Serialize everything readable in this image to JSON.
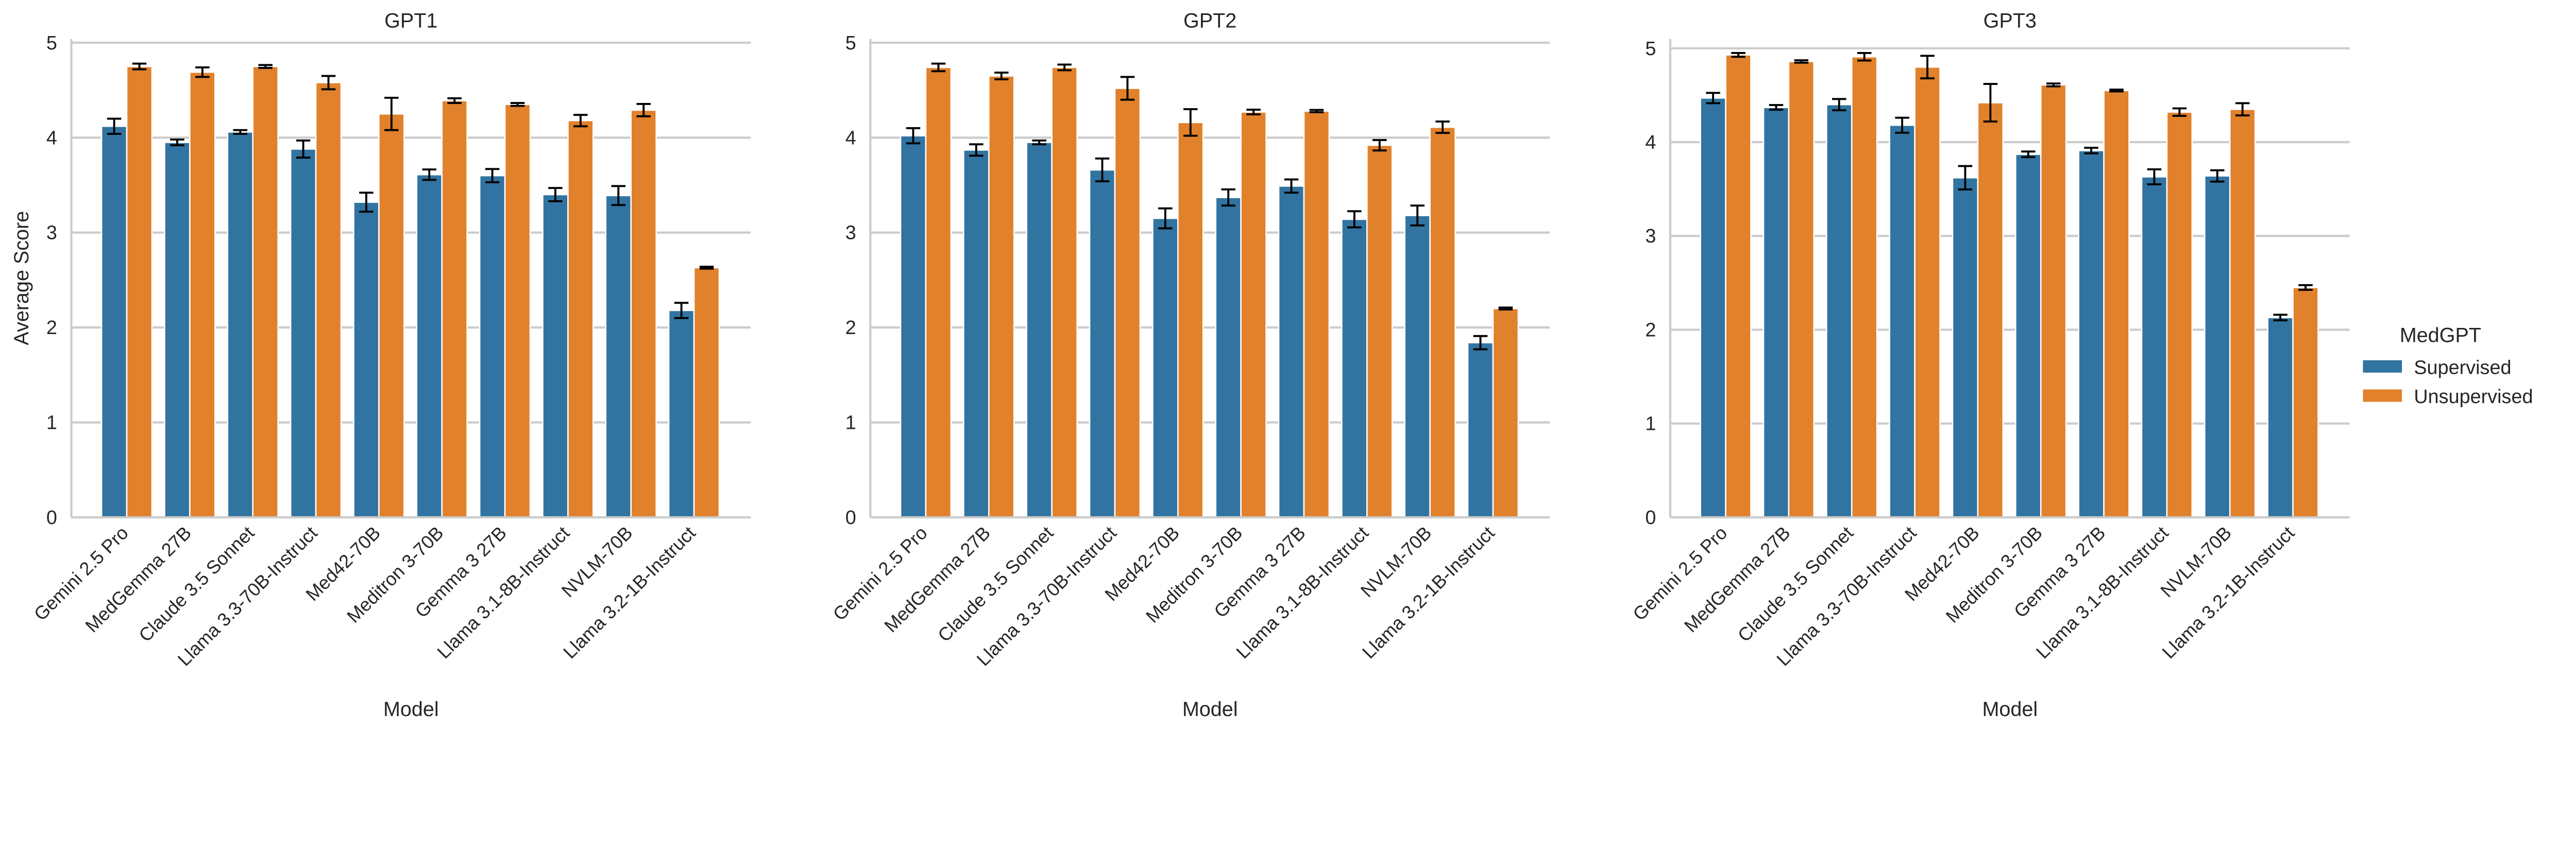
{
  "chart_data": [
    {
      "type": "bar",
      "title": "GPT1",
      "xlabel": "Model",
      "ylabel": "Average Score",
      "ylim": [
        0,
        5.04
      ],
      "yticks": [
        "0",
        "1",
        "2",
        "3",
        "4",
        "5"
      ],
      "grid": "horizontal",
      "categories": [
        "Gemini 2.5 Pro",
        "MedGemma 27B",
        "Claude 3.5 Sonnet",
        "Llama 3.3-70B-Instruct",
        "Med42-70B",
        "Meditron 3-70B",
        "Gemma 3 27B",
        "Llama 3.1-8B-Instruct",
        "NVLM-70B",
        "Llama 3.2-1B-Instruct"
      ],
      "series": [
        {
          "name": "Supervised",
          "values": [
            4.12,
            3.95,
            4.06,
            3.88,
            3.32,
            3.61,
            3.6,
            3.4,
            3.39,
            2.18
          ],
          "errors": [
            0.08,
            0.03,
            0.02,
            0.09,
            0.1,
            0.055,
            0.07,
            0.07,
            0.1,
            0.08
          ]
        },
        {
          "name": "Unsupervised",
          "values": [
            4.75,
            4.69,
            4.75,
            4.58,
            4.25,
            4.39,
            4.35,
            4.18,
            4.29,
            2.63
          ],
          "errors": [
            0.03,
            0.05,
            0.015,
            0.07,
            0.17,
            0.025,
            0.015,
            0.06,
            0.065,
            0.01
          ]
        }
      ]
    },
    {
      "type": "bar",
      "title": "GPT2",
      "xlabel": "Model",
      "ylabel": "",
      "ylim": [
        0,
        5.04
      ],
      "yticks": [
        "0",
        "1",
        "2",
        "3",
        "4",
        "5"
      ],
      "grid": "horizontal",
      "categories": [
        "Gemini 2.5 Pro",
        "MedGemma 27B",
        "Claude 3.5 Sonnet",
        "Llama 3.3-70B-Instruct",
        "Med42-70B",
        "Meditron 3-70B",
        "Gemma 3 27B",
        "Llama 3.1-8B-Instruct",
        "NVLM-70B",
        "Llama 3.2-1B-Instruct"
      ],
      "series": [
        {
          "name": "Supervised",
          "values": [
            4.02,
            3.87,
            3.95,
            3.66,
            3.15,
            3.37,
            3.49,
            3.14,
            3.18,
            1.84
          ],
          "errors": [
            0.08,
            0.06,
            0.02,
            0.12,
            0.105,
            0.085,
            0.07,
            0.085,
            0.105,
            0.07
          ]
        },
        {
          "name": "Unsupervised",
          "values": [
            4.74,
            4.65,
            4.74,
            4.52,
            4.16,
            4.27,
            4.28,
            3.92,
            4.11,
            2.2
          ],
          "errors": [
            0.04,
            0.035,
            0.03,
            0.12,
            0.14,
            0.025,
            0.012,
            0.055,
            0.06,
            0.01
          ]
        }
      ]
    },
    {
      "type": "bar",
      "title": "GPT3",
      "xlabel": "Model",
      "ylabel": "",
      "ylim": [
        0,
        5.1
      ],
      "yticks": [
        "0",
        "1",
        "2",
        "3",
        "4",
        "5"
      ],
      "grid": "horizontal",
      "categories": [
        "Gemini 2.5 Pro",
        "MedGemma 27B",
        "Claude 3.5 Sonnet",
        "Llama 3.3-70B-Instruct",
        "Med42-70B",
        "Meditron 3-70B",
        "Gemma 3 27B",
        "Llama 3.1-8B-Instruct",
        "NVLM-70B",
        "Llama 3.2-1B-Instruct"
      ],
      "series": [
        {
          "name": "Supervised",
          "values": [
            4.47,
            4.37,
            4.4,
            4.18,
            3.62,
            3.87,
            3.91,
            3.63,
            3.64,
            2.13
          ],
          "errors": [
            0.055,
            0.025,
            0.06,
            0.08,
            0.125,
            0.03,
            0.03,
            0.08,
            0.06,
            0.03
          ]
        },
        {
          "name": "Unsupervised",
          "values": [
            4.93,
            4.86,
            4.91,
            4.8,
            4.42,
            4.61,
            4.55,
            4.32,
            4.35,
            2.45
          ],
          "errors": [
            0.02,
            0.013,
            0.04,
            0.12,
            0.2,
            0.015,
            0.01,
            0.04,
            0.065,
            0.025
          ]
        }
      ]
    }
  ],
  "legend": {
    "title": "MedGPT",
    "placement": "right",
    "items": [
      {
        "label": "Supervised",
        "color": "#3274a1"
      },
      {
        "label": "Unsupervised",
        "color": "#e1812c"
      }
    ]
  },
  "colors": {
    "grid": "#cccccc",
    "text": "#262626",
    "errorbar": "#000000"
  }
}
